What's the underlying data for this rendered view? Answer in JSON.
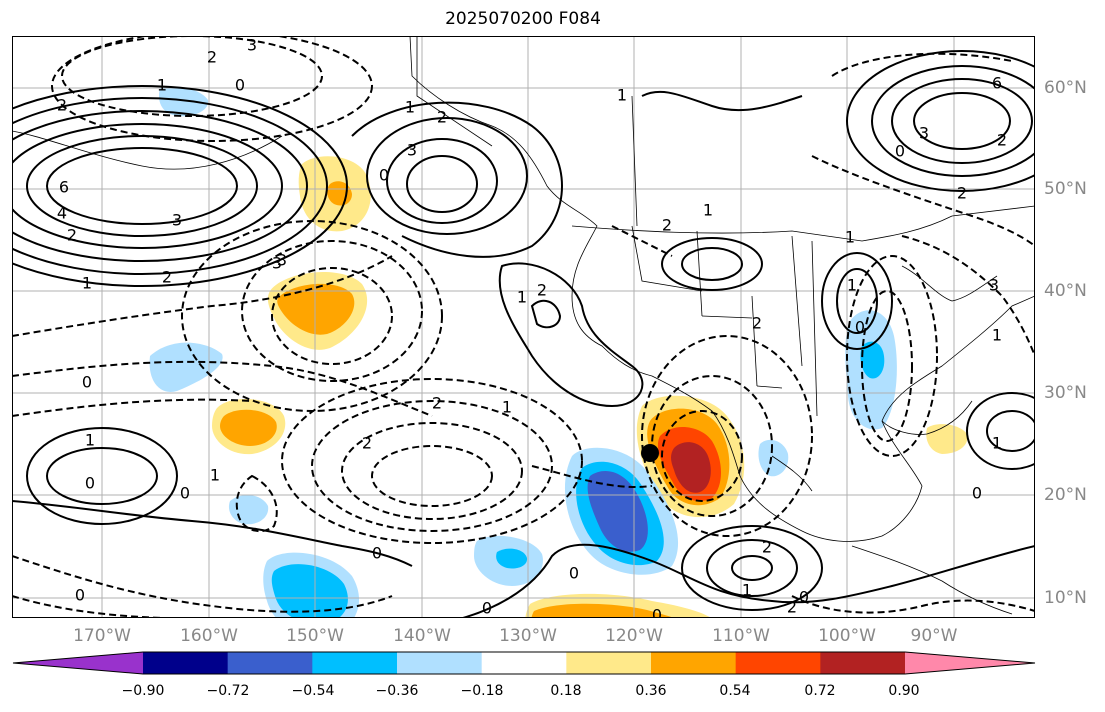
{
  "title": "2025070200 F084",
  "lat_labels": [
    "60°N",
    "50°N",
    "40°N",
    "30°N",
    "20°N",
    "10°N"
  ],
  "lon_labels": [
    "170°W",
    "160°W",
    "150°W",
    "140°W",
    "130°W",
    "120°W",
    "110°W",
    "100°W",
    "90°W"
  ],
  "colorbar": {
    "ticks": [
      "−0.90",
      "−0.72",
      "−0.54",
      "−0.36",
      "−0.18",
      "0.18",
      "0.36",
      "0.54",
      "0.72",
      "0.90"
    ],
    "colors": [
      "#9932cc",
      "#00008b",
      "#3a5fcd",
      "#00bfff",
      "#b0e0ff",
      "#ffffff",
      "#ffe98a",
      "#ffa500",
      "#ff4500",
      "#b22222",
      "#ff88aa"
    ]
  },
  "contour_labels": [
    "3",
    "2",
    "0",
    "1",
    "2",
    "6",
    "4",
    "3",
    "2",
    "1",
    "2",
    "3",
    "2",
    "1",
    "1",
    "2",
    "1",
    "3",
    "0",
    "1",
    "2",
    "0",
    "2",
    "1",
    "1",
    "0",
    "2",
    "0",
    "1",
    "0",
    "0",
    "3",
    "2",
    "1",
    "0",
    "1",
    "2",
    "0",
    "0",
    "0",
    "1",
    "2",
    "0",
    "0",
    "1",
    "6",
    "3",
    "2",
    "0",
    "3",
    "2",
    "1"
  ],
  "marker": "black-dot"
}
